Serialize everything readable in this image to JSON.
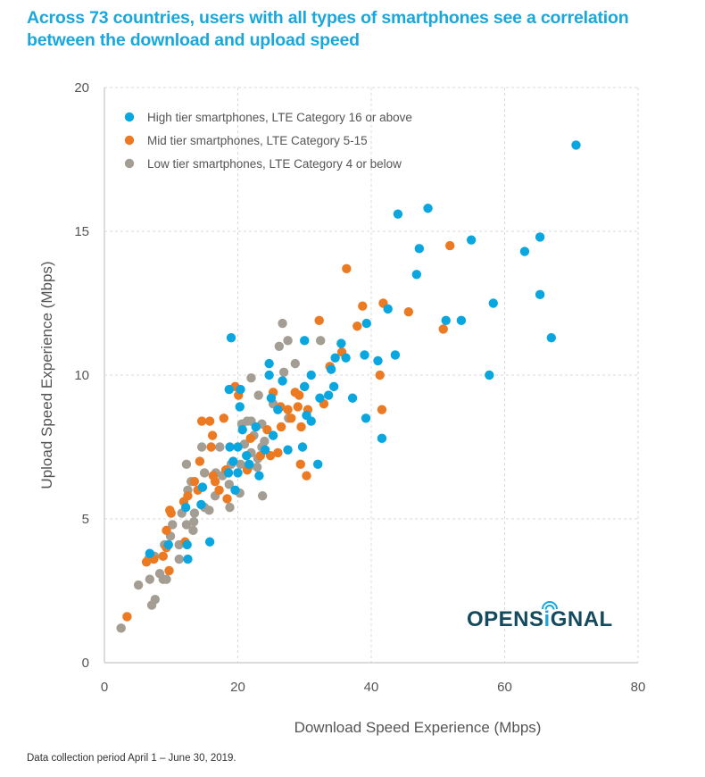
{
  "title": "Across 73 countries, users with all types of smartphones see a correlation between the download and upload speed",
  "footnote": "Data collection period April 1 – June 30, 2019.",
  "logo": {
    "text_before": "OPENS",
    "text_i": "i",
    "text_after": "GNAL",
    "icon": "wifi-signal-icon"
  },
  "colors": {
    "high": "#0aa6e0",
    "mid": "#ec7a22",
    "low": "#a39d93",
    "title": "#1aa7dc",
    "logo": "#144a5e"
  },
  "chart_data": {
    "type": "scatter",
    "title": "Across 73 countries, users with all types of smartphones see a correlation between the download and upload speed",
    "xlabel": "Download Speed Experience (Mbps)",
    "ylabel": "Upload Speed Experience  (Mbps)",
    "xlim": [
      0,
      80
    ],
    "ylim": [
      0,
      20
    ],
    "xticks": [
      0,
      20,
      40,
      60,
      80
    ],
    "yticks": [
      0,
      5,
      10,
      15,
      20
    ],
    "grid": true,
    "legend_position": "top-left",
    "series": [
      {
        "name": "High tier smartphones, LTE Category 16 or above",
        "color_key": "high",
        "points": [
          [
            70.7,
            18.0
          ],
          [
            48.5,
            15.8
          ],
          [
            44.0,
            15.6
          ],
          [
            65.3,
            14.8
          ],
          [
            55.0,
            14.7
          ],
          [
            47.2,
            14.4
          ],
          [
            63.0,
            14.3
          ],
          [
            46.8,
            13.5
          ],
          [
            65.3,
            12.8
          ],
          [
            58.3,
            12.5
          ],
          [
            42.5,
            12.3
          ],
          [
            53.5,
            11.9
          ],
          [
            51.2,
            11.9
          ],
          [
            39.3,
            11.8
          ],
          [
            67.0,
            11.3
          ],
          [
            19.0,
            11.3
          ],
          [
            35.5,
            11.1
          ],
          [
            30.0,
            11.2
          ],
          [
            43.6,
            10.7
          ],
          [
            39.0,
            10.7
          ],
          [
            36.2,
            10.6
          ],
          [
            34.6,
            10.6
          ],
          [
            41.0,
            10.5
          ],
          [
            24.7,
            10.4
          ],
          [
            34.0,
            10.2
          ],
          [
            57.7,
            10.0
          ],
          [
            31.0,
            10.0
          ],
          [
            24.7,
            10.0
          ],
          [
            34.4,
            9.6
          ],
          [
            30.0,
            9.6
          ],
          [
            26.7,
            9.8
          ],
          [
            18.7,
            9.5
          ],
          [
            20.4,
            9.5
          ],
          [
            33.6,
            9.3
          ],
          [
            37.2,
            9.2
          ],
          [
            25.0,
            9.2
          ],
          [
            32.3,
            9.2
          ],
          [
            20.3,
            8.9
          ],
          [
            26.0,
            8.8
          ],
          [
            30.3,
            8.6
          ],
          [
            39.2,
            8.5
          ],
          [
            31.0,
            8.4
          ],
          [
            22.7,
            8.2
          ],
          [
            20.7,
            8.1
          ],
          [
            25.3,
            7.9
          ],
          [
            41.6,
            7.8
          ],
          [
            29.7,
            7.5
          ],
          [
            18.8,
            7.5
          ],
          [
            20.0,
            7.5
          ],
          [
            24.1,
            7.4
          ],
          [
            27.5,
            7.4
          ],
          [
            21.3,
            7.2
          ],
          [
            19.3,
            7.0
          ],
          [
            32.0,
            6.9
          ],
          [
            21.7,
            6.9
          ],
          [
            18.6,
            6.6
          ],
          [
            23.2,
            6.5
          ],
          [
            14.7,
            6.1
          ],
          [
            12.2,
            5.4
          ],
          [
            15.8,
            4.2
          ],
          [
            12.4,
            4.1
          ],
          [
            9.6,
            4.1
          ],
          [
            6.8,
            3.8
          ],
          [
            12.5,
            3.6
          ],
          [
            20.0,
            6.6
          ],
          [
            19.6,
            6.0
          ],
          [
            14.5,
            5.5
          ]
        ]
      },
      {
        "name": "Mid tier smartphones, LTE Category 5-15",
        "color_key": "mid",
        "points": [
          [
            51.8,
            14.5
          ],
          [
            36.3,
            13.7
          ],
          [
            41.8,
            12.5
          ],
          [
            38.7,
            12.4
          ],
          [
            45.6,
            12.2
          ],
          [
            32.2,
            11.9
          ],
          [
            37.9,
            11.7
          ],
          [
            50.8,
            11.6
          ],
          [
            35.6,
            10.8
          ],
          [
            33.8,
            10.3
          ],
          [
            41.3,
            10.0
          ],
          [
            19.6,
            9.6
          ],
          [
            25.3,
            9.4
          ],
          [
            28.6,
            9.4
          ],
          [
            30.0,
            9.6
          ],
          [
            20.1,
            9.3
          ],
          [
            29.2,
            9.3
          ],
          [
            32.9,
            9.0
          ],
          [
            26.4,
            8.9
          ],
          [
            29.0,
            8.9
          ],
          [
            27.5,
            8.8
          ],
          [
            30.5,
            8.8
          ],
          [
            41.6,
            8.8
          ],
          [
            28.0,
            8.5
          ],
          [
            17.9,
            8.5
          ],
          [
            14.6,
            8.4
          ],
          [
            15.8,
            8.4
          ],
          [
            26.5,
            8.2
          ],
          [
            29.5,
            8.2
          ],
          [
            24.4,
            8.1
          ],
          [
            16.2,
            7.9
          ],
          [
            21.9,
            7.8
          ],
          [
            16.0,
            7.5
          ],
          [
            23.4,
            7.2
          ],
          [
            24.9,
            7.2
          ],
          [
            26.0,
            7.3
          ],
          [
            14.3,
            7.0
          ],
          [
            29.4,
            6.9
          ],
          [
            21.4,
            6.7
          ],
          [
            18.2,
            6.7
          ],
          [
            16.3,
            6.5
          ],
          [
            30.3,
            6.5
          ],
          [
            13.5,
            6.3
          ],
          [
            16.6,
            6.3
          ],
          [
            14.0,
            6.0
          ],
          [
            17.2,
            6.0
          ],
          [
            12.5,
            5.8
          ],
          [
            11.9,
            5.6
          ],
          [
            18.4,
            5.7
          ],
          [
            9.8,
            5.3
          ],
          [
            10.0,
            5.2
          ],
          [
            9.3,
            4.6
          ],
          [
            12.1,
            4.2
          ],
          [
            9.3,
            4.0
          ],
          [
            6.3,
            3.5
          ],
          [
            7.4,
            3.6
          ],
          [
            8.8,
            3.7
          ],
          [
            9.7,
            3.2
          ],
          [
            3.4,
            1.6
          ]
        ]
      },
      {
        "name": "Low tier smartphones, LTE Category 4 or below",
        "color_key": "low",
        "points": [
          [
            26.7,
            11.8
          ],
          [
            27.5,
            11.2
          ],
          [
            32.4,
            11.2
          ],
          [
            26.2,
            11.0
          ],
          [
            28.6,
            10.4
          ],
          [
            26.9,
            10.1
          ],
          [
            22.0,
            9.9
          ],
          [
            23.1,
            9.3
          ],
          [
            25.3,
            9.0
          ],
          [
            27.6,
            8.5
          ],
          [
            22.0,
            8.4
          ],
          [
            21.4,
            8.4
          ],
          [
            20.6,
            8.3
          ],
          [
            23.6,
            8.3
          ],
          [
            22.4,
            7.9
          ],
          [
            24.0,
            7.7
          ],
          [
            21.0,
            7.6
          ],
          [
            23.6,
            7.5
          ],
          [
            17.3,
            7.5
          ],
          [
            22.0,
            7.3
          ],
          [
            14.6,
            7.5
          ],
          [
            23.0,
            7.1
          ],
          [
            20.4,
            6.9
          ],
          [
            12.3,
            6.9
          ],
          [
            19.0,
            6.9
          ],
          [
            22.9,
            6.8
          ],
          [
            21.6,
            6.8
          ],
          [
            15.0,
            6.6
          ],
          [
            16.7,
            6.6
          ],
          [
            18.7,
            6.2
          ],
          [
            17.7,
            6.5
          ],
          [
            13.0,
            6.3
          ],
          [
            14.7,
            6.1
          ],
          [
            12.5,
            6.0
          ],
          [
            20.3,
            5.9
          ],
          [
            23.7,
            5.8
          ],
          [
            16.6,
            5.8
          ],
          [
            15.0,
            5.4
          ],
          [
            18.8,
            5.4
          ],
          [
            11.6,
            5.2
          ],
          [
            13.5,
            5.2
          ],
          [
            15.7,
            5.3
          ],
          [
            12.3,
            4.8
          ],
          [
            13.4,
            4.9
          ],
          [
            10.2,
            4.8
          ],
          [
            13.3,
            4.6
          ],
          [
            9.9,
            4.4
          ],
          [
            11.2,
            4.1
          ],
          [
            9.0,
            4.1
          ],
          [
            11.2,
            3.6
          ],
          [
            7.5,
            3.7
          ],
          [
            6.6,
            3.6
          ],
          [
            8.3,
            3.1
          ],
          [
            8.8,
            2.9
          ],
          [
            6.8,
            2.9
          ],
          [
            9.3,
            2.9
          ],
          [
            5.1,
            2.7
          ],
          [
            7.6,
            2.2
          ],
          [
            7.1,
            2.0
          ],
          [
            2.5,
            1.2
          ]
        ]
      }
    ]
  }
}
